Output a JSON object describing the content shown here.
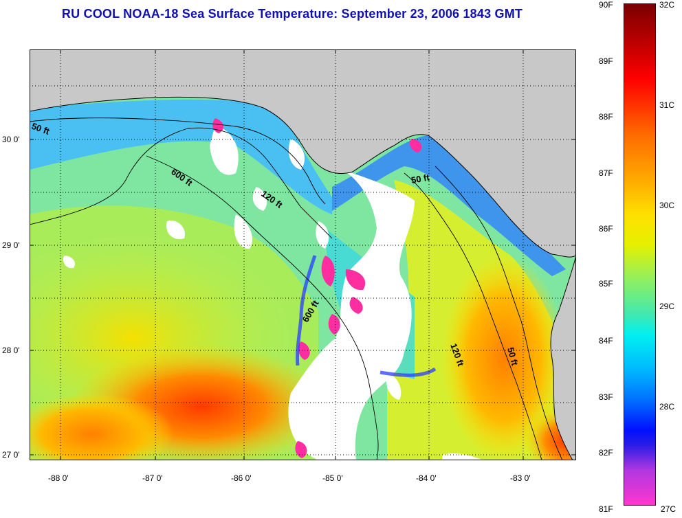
{
  "title": "RU COOL  NOAA-18  Sea Surface Temperature:  September 23, 2006 1843 GMT",
  "map": {
    "region": "Gulf of Mexico - Florida panhandle and west Florida shelf",
    "lon_range": [
      -88.3,
      -82.4
    ],
    "lat_range": [
      26.95,
      30.85
    ],
    "lon_ticks": [
      {
        "value": -88,
        "label": "-88 0'"
      },
      {
        "value": -87,
        "label": "-87 0'"
      },
      {
        "value": -86,
        "label": "-86 0'"
      },
      {
        "value": -85,
        "label": "-85 0'"
      },
      {
        "value": -84,
        "label": "-84 0'"
      },
      {
        "value": -83,
        "label": "-83 0'"
      }
    ],
    "lat_ticks": [
      {
        "value": 30,
        "label": "30 0'"
      },
      {
        "value": 29,
        "label": "29 0'"
      },
      {
        "value": 28,
        "label": "28 0'"
      },
      {
        "value": 27,
        "label": "27 0'"
      }
    ],
    "contour_labels": [
      {
        "text": "50 ft"
      },
      {
        "text": "600 ft"
      },
      {
        "text": "120 ft"
      },
      {
        "text": "50 ft"
      },
      {
        "text": "600 ft"
      },
      {
        "text": "120 ft"
      },
      {
        "text": "50 ft"
      }
    ],
    "colors": {
      "land": "#c8c8c8",
      "cloud": "#ffffff",
      "coast": "#000000"
    }
  },
  "colorbar": {
    "fahrenheit_labels": [
      "90F",
      "89F",
      "88F",
      "87F",
      "86F",
      "85F",
      "84F",
      "83F",
      "82F",
      "81F"
    ],
    "celsius_labels": [
      "32C",
      "31C",
      "30C",
      "29C",
      "28C",
      "27C"
    ]
  }
}
